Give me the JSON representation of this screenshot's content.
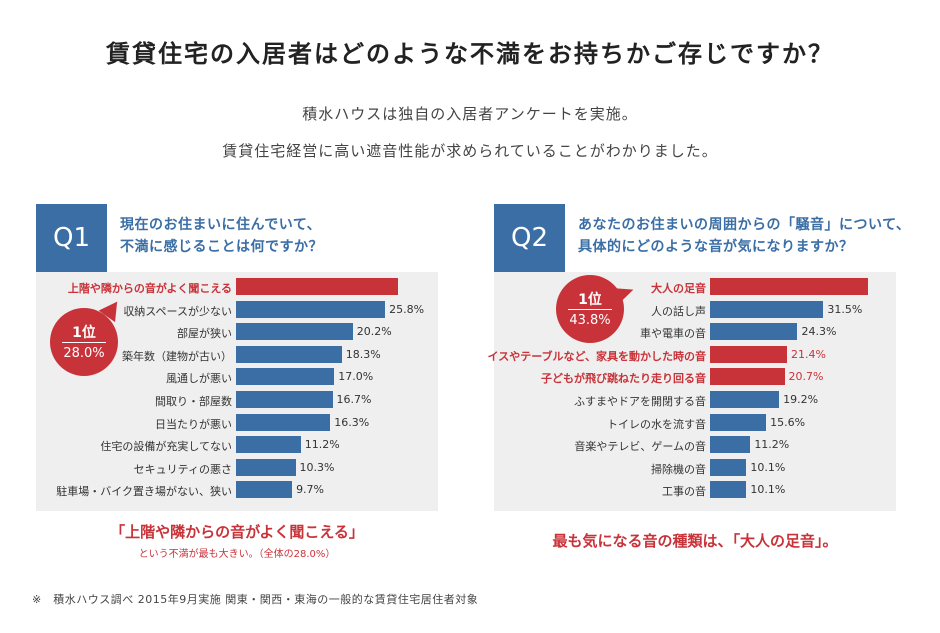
{
  "title": "賃貸住宅の入居者はどのような不満をお持ちかご存じですか？",
  "intro": [
    "積水ハウスは独自の入居者アンケートを実施。",
    "賃貸住宅経営に高い遮音性能が求められていることがわかりました。"
  ],
  "colors": {
    "accent_blue": "#3a6ea5",
    "accent_red": "#c8333a",
    "panel_bg": "#efefef"
  },
  "chart_data": [
    {
      "type": "bar",
      "orientation": "horizontal",
      "badge": "Q1",
      "question": [
        "現在のお住まいに住んでいて、",
        "不満に感じることは何ですか？"
      ],
      "categories": [
        "上階や隣からの音がよく聞こえる",
        "収納スペースが少ない",
        "部屋が狭い",
        "築年数（建物が古い）",
        "風通しが悪い",
        "間取り・部屋数",
        "日当たりが悪い",
        "住宅の設備が充実してない",
        "セキュリティの悪さ",
        "駐車場・バイク置き場がない、狭い"
      ],
      "values": [
        28.0,
        25.8,
        20.2,
        18.3,
        17.0,
        16.7,
        16.3,
        11.2,
        10.3,
        9.7
      ],
      "value_labels": [
        "",
        "25.8%",
        "20.2%",
        "18.3%",
        "17.0%",
        "16.7%",
        "16.3%",
        "11.2%",
        "10.3%",
        "9.7%"
      ],
      "highlight": [
        0
      ],
      "callout": {
        "rank": "1位",
        "value": "28.0%"
      },
      "summary": [
        "「上階や隣からの音がよく聞こえる」",
        "という不満が最も大きい。（全体の28.0%）"
      ]
    },
    {
      "type": "bar",
      "orientation": "horizontal",
      "badge": "Q2",
      "question": [
        "あなたのお住まいの周囲からの「騒音」について、",
        "具体的にどのような音が気になりますか？"
      ],
      "categories": [
        "大人の足音",
        "人の話し声",
        "車や電車の音",
        "イスやテーブルなど、家具を動かした時の音",
        "子どもが飛び跳ねたり走り回る音",
        "ふすまやドアを開閉する音",
        "トイレの水を流す音",
        "音楽やテレビ、ゲームの音",
        "掃除機の音",
        "工事の音"
      ],
      "values": [
        43.8,
        31.5,
        24.3,
        21.4,
        20.7,
        19.2,
        15.6,
        11.2,
        10.1,
        10.1
      ],
      "value_labels": [
        "",
        "31.5%",
        "24.3%",
        "21.4%",
        "20.7%",
        "19.2%",
        "15.6%",
        "11.2%",
        "10.1%",
        "10.1%"
      ],
      "highlight": [
        0,
        3,
        4
      ],
      "callout": {
        "rank": "1位",
        "value": "43.8%"
      },
      "summary": [
        "最も気になる音の種類は、「大人の足音」。"
      ]
    }
  ],
  "footnote": "※　積水ハウス調べ 2015年9月実施 関東・関西・東海の一般的な賃貸住宅居住者対象"
}
